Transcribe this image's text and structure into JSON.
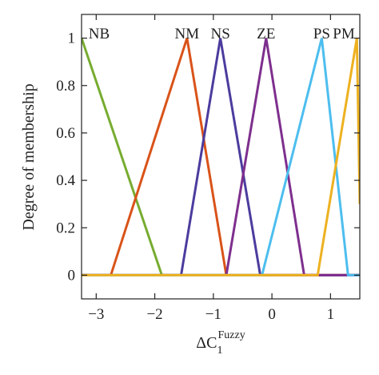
{
  "chart_data": {
    "type": "line",
    "ylabel": "Degree of membership",
    "xlabel": {
      "base": "ΔC",
      "subscript": "1",
      "superscript": "Fuzzy"
    },
    "xlim": [
      -3.25,
      1.5
    ],
    "ylim": [
      -0.1,
      1.1
    ],
    "x_ticks": [
      {
        "value": -3,
        "label": "−3"
      },
      {
        "value": -2,
        "label": "−2"
      },
      {
        "value": -1,
        "label": "−1"
      },
      {
        "value": 0,
        "label": "0"
      },
      {
        "value": 1,
        "label": "1"
      }
    ],
    "y_ticks": [
      {
        "value": 0,
        "label": "0"
      },
      {
        "value": 0.2,
        "label": "0.2"
      },
      {
        "value": 0.4,
        "label": "0.4"
      },
      {
        "value": 0.6,
        "label": "0.6"
      },
      {
        "value": 0.8,
        "label": "0.8"
      },
      {
        "value": 1,
        "label": "1"
      }
    ],
    "grid": false,
    "series": [
      {
        "name": "NB",
        "color": "#77ac30",
        "points": [
          [
            -3.25,
            1
          ],
          [
            -1.88,
            0
          ],
          [
            1.5,
            0
          ]
        ]
      },
      {
        "name": "NM",
        "color": "#d95319",
        "points": [
          [
            -3.25,
            0
          ],
          [
            -2.75,
            0
          ],
          [
            -1.45,
            1
          ],
          [
            -0.78,
            0
          ],
          [
            1.5,
            0
          ]
        ]
      },
      {
        "name": "NS",
        "color": "#4b3c9e",
        "points": [
          [
            -3.25,
            0
          ],
          [
            -1.55,
            0
          ],
          [
            -0.88,
            1
          ],
          [
            -0.2,
            0
          ],
          [
            1.5,
            0
          ]
        ]
      },
      {
        "name": "ZE",
        "color": "#7e2f8e",
        "points": [
          [
            -3.25,
            0
          ],
          [
            -0.78,
            0
          ],
          [
            -0.1,
            1
          ],
          [
            0.55,
            0
          ],
          [
            1.5,
            0
          ]
        ]
      },
      {
        "name": "PS",
        "color": "#4dbeee",
        "points": [
          [
            -3.25,
            0
          ],
          [
            -0.17,
            0
          ],
          [
            0.85,
            1
          ],
          [
            1.3,
            0
          ],
          [
            1.5,
            0
          ]
        ]
      },
      {
        "name": "PM",
        "color": "#edb120",
        "points": [
          [
            -3.25,
            0
          ],
          [
            0.78,
            0
          ],
          [
            1.45,
            1
          ],
          [
            1.5,
            0.3
          ]
        ]
      }
    ]
  }
}
